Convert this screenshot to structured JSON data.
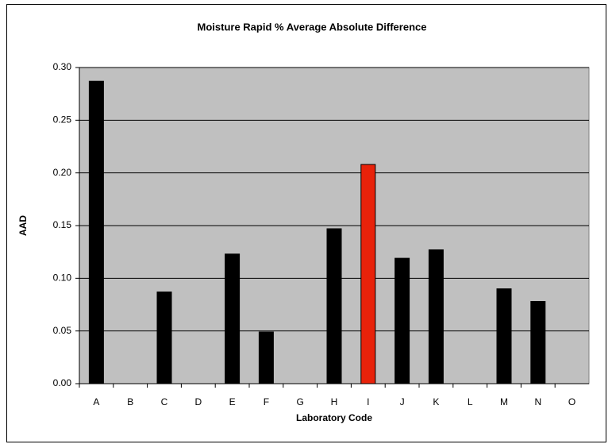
{
  "chart_data": {
    "type": "bar",
    "title": "Moisture Rapid % Average Absolute Difference",
    "xlabel": "Laboratory Code",
    "ylabel": "AAD",
    "categories": [
      "A",
      "B",
      "C",
      "D",
      "E",
      "F",
      "G",
      "H",
      "I",
      "J",
      "K",
      "L",
      "M",
      "N",
      "O"
    ],
    "values": [
      0.287,
      null,
      0.087,
      null,
      0.123,
      0.049,
      null,
      0.147,
      0.208,
      0.119,
      0.127,
      null,
      0.09,
      0.078,
      null
    ],
    "colors": [
      "#000000",
      "#000000",
      "#000000",
      "#000000",
      "#000000",
      "#000000",
      "#000000",
      "#000000",
      "#e8220a",
      "#000000",
      "#000000",
      "#000000",
      "#000000",
      "#000000",
      "#000000"
    ],
    "ylim": [
      0,
      0.3
    ],
    "yticks": [
      {
        "value": 0,
        "label": "0.00"
      },
      {
        "value": 0.05,
        "label": "0.05"
      },
      {
        "value": 0.1,
        "label": "0.10"
      },
      {
        "value": 0.15,
        "label": "0.15"
      },
      {
        "value": 0.2,
        "label": "0.20"
      },
      {
        "value": 0.25,
        "label": "0.25"
      },
      {
        "value": 0.3,
        "label": "0.30"
      }
    ],
    "grid": true
  }
}
